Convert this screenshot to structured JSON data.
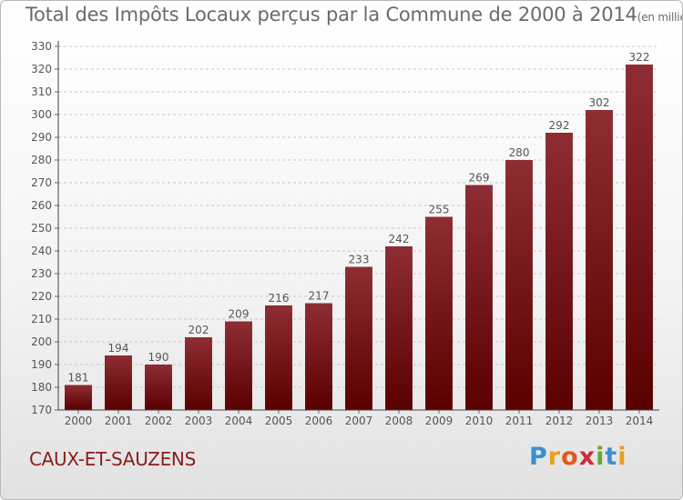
{
  "chart_data": {
    "type": "bar",
    "title": "Total des Impôts Locaux perçus par la Commune de 2000 à 2014",
    "subtitle": "(en milliers d'€)",
    "categories": [
      "2000",
      "2001",
      "2002",
      "2003",
      "2004",
      "2005",
      "2006",
      "2007",
      "2008",
      "2009",
      "2010",
      "2011",
      "2012",
      "2013",
      "2014"
    ],
    "values": [
      181,
      194,
      190,
      202,
      209,
      216,
      217,
      233,
      242,
      255,
      269,
      280,
      292,
      302,
      322
    ],
    "ylim": [
      170,
      330
    ],
    "ytick_step": 10,
    "xlabel": "",
    "ylabel": "",
    "grid": true,
    "bar_color": "#7a1a1e"
  },
  "footer": {
    "commune": "CAUX-ET-SAUZENS",
    "brand_letters": [
      "P",
      "r",
      "o",
      "x",
      "i",
      "t",
      "i"
    ],
    "brand_colors": [
      "#3a8fd0",
      "#e8a020",
      "#e05a20",
      "#d02a40",
      "#6aa830",
      "#3a8fd0",
      "#e8a020"
    ]
  }
}
